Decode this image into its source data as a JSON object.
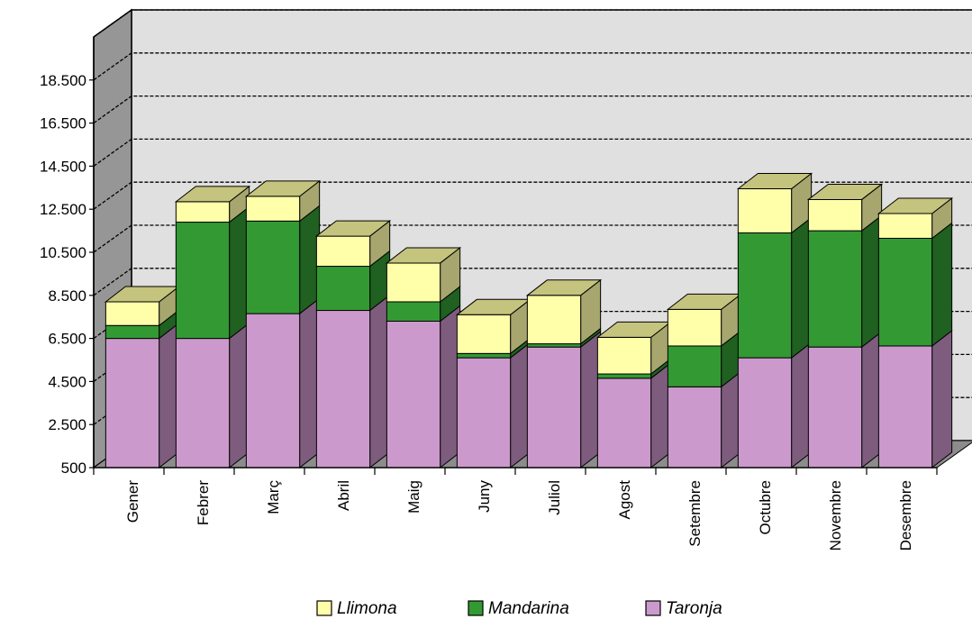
{
  "chart_data": {
    "type": "bar",
    "stacked": true,
    "three_d": true,
    "categories": [
      "Gener",
      "Febrer",
      "Març",
      "Abril",
      "Maig",
      "Juny",
      "Juliol",
      "Agost",
      "Setembre",
      "Octubre",
      "Novembre",
      "Desembre"
    ],
    "series": [
      {
        "name": "Taronja",
        "values": [
          6000,
          6000,
          7150,
          7300,
          6800,
          5100,
          5600,
          4150,
          3750,
          5100,
          5600,
          5650
        ],
        "color": "#cc99cc",
        "side_color": "#7e5c7e",
        "top_color": "#9a749a"
      },
      {
        "name": "Mandarina",
        "values": [
          600,
          5400,
          4300,
          2050,
          900,
          200,
          150,
          200,
          1900,
          5800,
          5400,
          5000
        ],
        "color": "#339933",
        "side_color": "#206020",
        "top_color": "#2c7f2c"
      },
      {
        "name": "Llimona",
        "values": [
          1100,
          950,
          1150,
          1400,
          1800,
          1800,
          2250,
          1700,
          1700,
          2050,
          1450,
          1150
        ],
        "color": "#ffffaa",
        "side_color": "#a6a66e",
        "top_color": "#c4c47e"
      }
    ],
    "y_tick_labels": [
      "500",
      "2.500",
      "4.500",
      "6.500",
      "8.500",
      "10.500",
      "12.500",
      "14.500",
      "16.500",
      "18.500"
    ],
    "y_ticks": [
      500,
      2500,
      4500,
      6500,
      8500,
      10500,
      12500,
      14500,
      16500,
      18500
    ],
    "ylim": [
      500,
      20500
    ],
    "grid": true,
    "legend_position": "bottom",
    "legend_order": [
      "Llimona",
      "Mandarina",
      "Taronja"
    ],
    "colors": {
      "back_wall": "#e0e0e0",
      "side_wall": "#969696",
      "floor": "#8c8c8c",
      "grid_line": "#000000"
    }
  }
}
